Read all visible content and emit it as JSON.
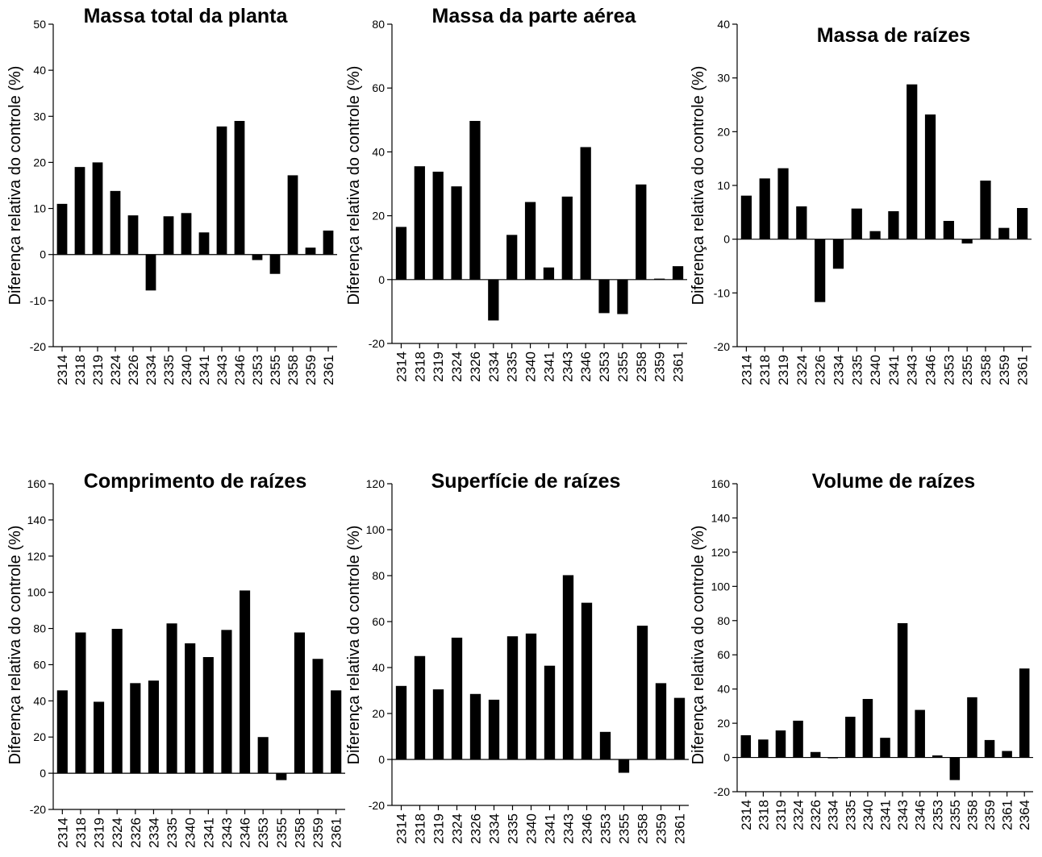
{
  "chart_data": [
    {
      "type": "bar",
      "title": "Massa total da planta",
      "ylabel": "Diferença relativa do controle (%)",
      "ylim": [
        -20,
        50
      ],
      "yticks": [
        -20,
        -10,
        0,
        10,
        20,
        30,
        40,
        50
      ],
      "categories": [
        "2314",
        "2318",
        "2319",
        "2324",
        "2326",
        "2334",
        "2335",
        "2340",
        "2341",
        "2343",
        "2346",
        "2353",
        "2355",
        "2358",
        "2359",
        "2361"
      ],
      "values": [
        11,
        19,
        20,
        13.8,
        8.5,
        -7.8,
        8.3,
        9,
        4.8,
        27.8,
        29,
        -1.2,
        -4.2,
        17.2,
        1.5,
        5.2
      ],
      "grid": false
    },
    {
      "type": "bar",
      "title": "Massa da parte aérea",
      "ylabel": "Diferença relativa do controle (%)",
      "ylim": [
        -20,
        80
      ],
      "yticks": [
        -20,
        0,
        20,
        40,
        60,
        80
      ],
      "categories": [
        "2314",
        "2318",
        "2319",
        "2324",
        "2326",
        "2334",
        "2335",
        "2340",
        "2341",
        "2343",
        "2346",
        "2353",
        "2355",
        "2358",
        "2359",
        "2361"
      ],
      "values": [
        16.5,
        35.5,
        33.8,
        29.2,
        49.7,
        -12.8,
        14,
        24.3,
        3.8,
        26,
        41.5,
        -10.5,
        -10.8,
        29.8,
        0.3,
        4.2
      ],
      "grid": false
    },
    {
      "type": "bar",
      "title": "Massa de raízes",
      "ylabel": "Diferença relativa do controle (%)",
      "ylim": [
        -20,
        40
      ],
      "yticks": [
        -20,
        -10,
        0,
        10,
        20,
        30,
        40
      ],
      "categories": [
        "2314",
        "2318",
        "2319",
        "2324",
        "2326",
        "2334",
        "2335",
        "2340",
        "2341",
        "2343",
        "2346",
        "2353",
        "2355",
        "2358",
        "2359",
        "2361"
      ],
      "values": [
        8.1,
        11.3,
        13.2,
        6.1,
        -11.7,
        -5.5,
        5.7,
        1.5,
        5.2,
        28.8,
        23.2,
        3.4,
        -0.8,
        10.9,
        2.1,
        5.8
      ],
      "grid": false
    },
    {
      "type": "bar",
      "title": "Comprimento de raízes",
      "ylabel": "Diferença relativa do controle (%)",
      "ylim": [
        -20,
        160
      ],
      "yticks": [
        -20,
        0,
        20,
        40,
        60,
        80,
        100,
        120,
        140,
        160
      ],
      "categories": [
        "2314",
        "2318",
        "2319",
        "2324",
        "2326",
        "2334",
        "2335",
        "2340",
        "2341",
        "2343",
        "2346",
        "2353",
        "2355",
        "2358",
        "2359",
        "2361"
      ],
      "values": [
        45.8,
        77.8,
        39.5,
        79.8,
        49.8,
        51.2,
        82.8,
        71.8,
        64.2,
        79.2,
        101,
        20,
        -3.8,
        77.8,
        63.2,
        45.8
      ],
      "grid": false
    },
    {
      "type": "bar",
      "title": "Superfície de raízes",
      "ylabel": "Diferença relativa do controle (%)",
      "ylim": [
        -20,
        120
      ],
      "yticks": [
        -20,
        0,
        20,
        40,
        60,
        80,
        100,
        120
      ],
      "categories": [
        "2314",
        "2318",
        "2319",
        "2324",
        "2326",
        "2334",
        "2335",
        "2340",
        "2341",
        "2343",
        "2346",
        "2353",
        "2355",
        "2358",
        "2359",
        "2361"
      ],
      "values": [
        32,
        45,
        30.5,
        53,
        28.5,
        26,
        53.6,
        54.8,
        40.8,
        80.2,
        68.2,
        12,
        -5.8,
        58.2,
        33.2,
        26.8
      ],
      "grid": false
    },
    {
      "type": "bar",
      "title": "Volume de raízes",
      "ylabel": "Diferença relativa do controle (%)",
      "ylim": [
        -30,
        160
      ],
      "yticks": [
        -20,
        0,
        20,
        40,
        60,
        80,
        100,
        120,
        140,
        160
      ],
      "categories": [
        "2314",
        "2318",
        "2319",
        "2324",
        "2326",
        "2334",
        "2335",
        "2340",
        "2341",
        "2343",
        "2346",
        "2353",
        "2355",
        "2358",
        "2359",
        "2361",
        "2364"
      ],
      "values": [
        13,
        10.5,
        15.8,
        21.5,
        3.2,
        -0.5,
        23.8,
        34.2,
        11.5,
        78.5,
        27.8,
        1.2,
        -13.2,
        35.2,
        10.2,
        3.8,
        52
      ],
      "grid": false
    }
  ]
}
